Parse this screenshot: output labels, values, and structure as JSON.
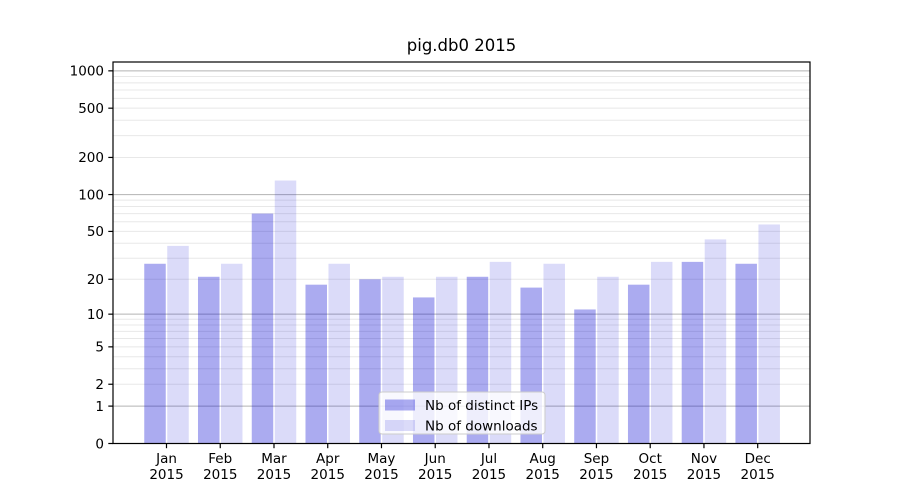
{
  "chart_data": {
    "type": "bar",
    "title": "pig.db0 2015",
    "categories": [
      "Jan 2015",
      "Feb 2015",
      "Mar 2015",
      "Apr 2015",
      "May 2015",
      "Jun 2015",
      "Jul 2015",
      "Aug 2015",
      "Sep 2015",
      "Oct 2015",
      "Nov 2015",
      "Dec 2015"
    ],
    "series": [
      {
        "name": "Nb of distinct IPs",
        "color": "#0000d2",
        "opacity": 0.33,
        "rendered_hex_on_white": "#ababef",
        "values": [
          27,
          21,
          70,
          18,
          20,
          14,
          21,
          17,
          11,
          18,
          28,
          27
        ]
      },
      {
        "name": "Nb of downloads",
        "color": "#0000d2",
        "opacity": 0.14,
        "rendered_hex_on_white": "#dbdbf9",
        "values": [
          38,
          27,
          130,
          27,
          21,
          21,
          28,
          27,
          21,
          28,
          43,
          57
        ]
      }
    ],
    "y_scale": "log10(1+v)",
    "ylim": [
      0,
      1180
    ],
    "y_ticks": [
      0,
      1,
      2,
      5,
      10,
      20,
      50,
      100,
      200,
      500,
      1000
    ],
    "grid_major": [
      1,
      10,
      100,
      1000
    ],
    "grid_minor": [
      2,
      3,
      4,
      5,
      6,
      7,
      8,
      9,
      20,
      30,
      40,
      50,
      60,
      70,
      80,
      90,
      200,
      300,
      400,
      500,
      600,
      700,
      800,
      900
    ],
    "grid_major_color": "#b3b3b3",
    "grid_minor_color": "#e8e8e8",
    "axis_color": "#000000",
    "legend_position": "lower-center",
    "legend_bg": "#ffffff",
    "legend_border": "#cccccc"
  }
}
